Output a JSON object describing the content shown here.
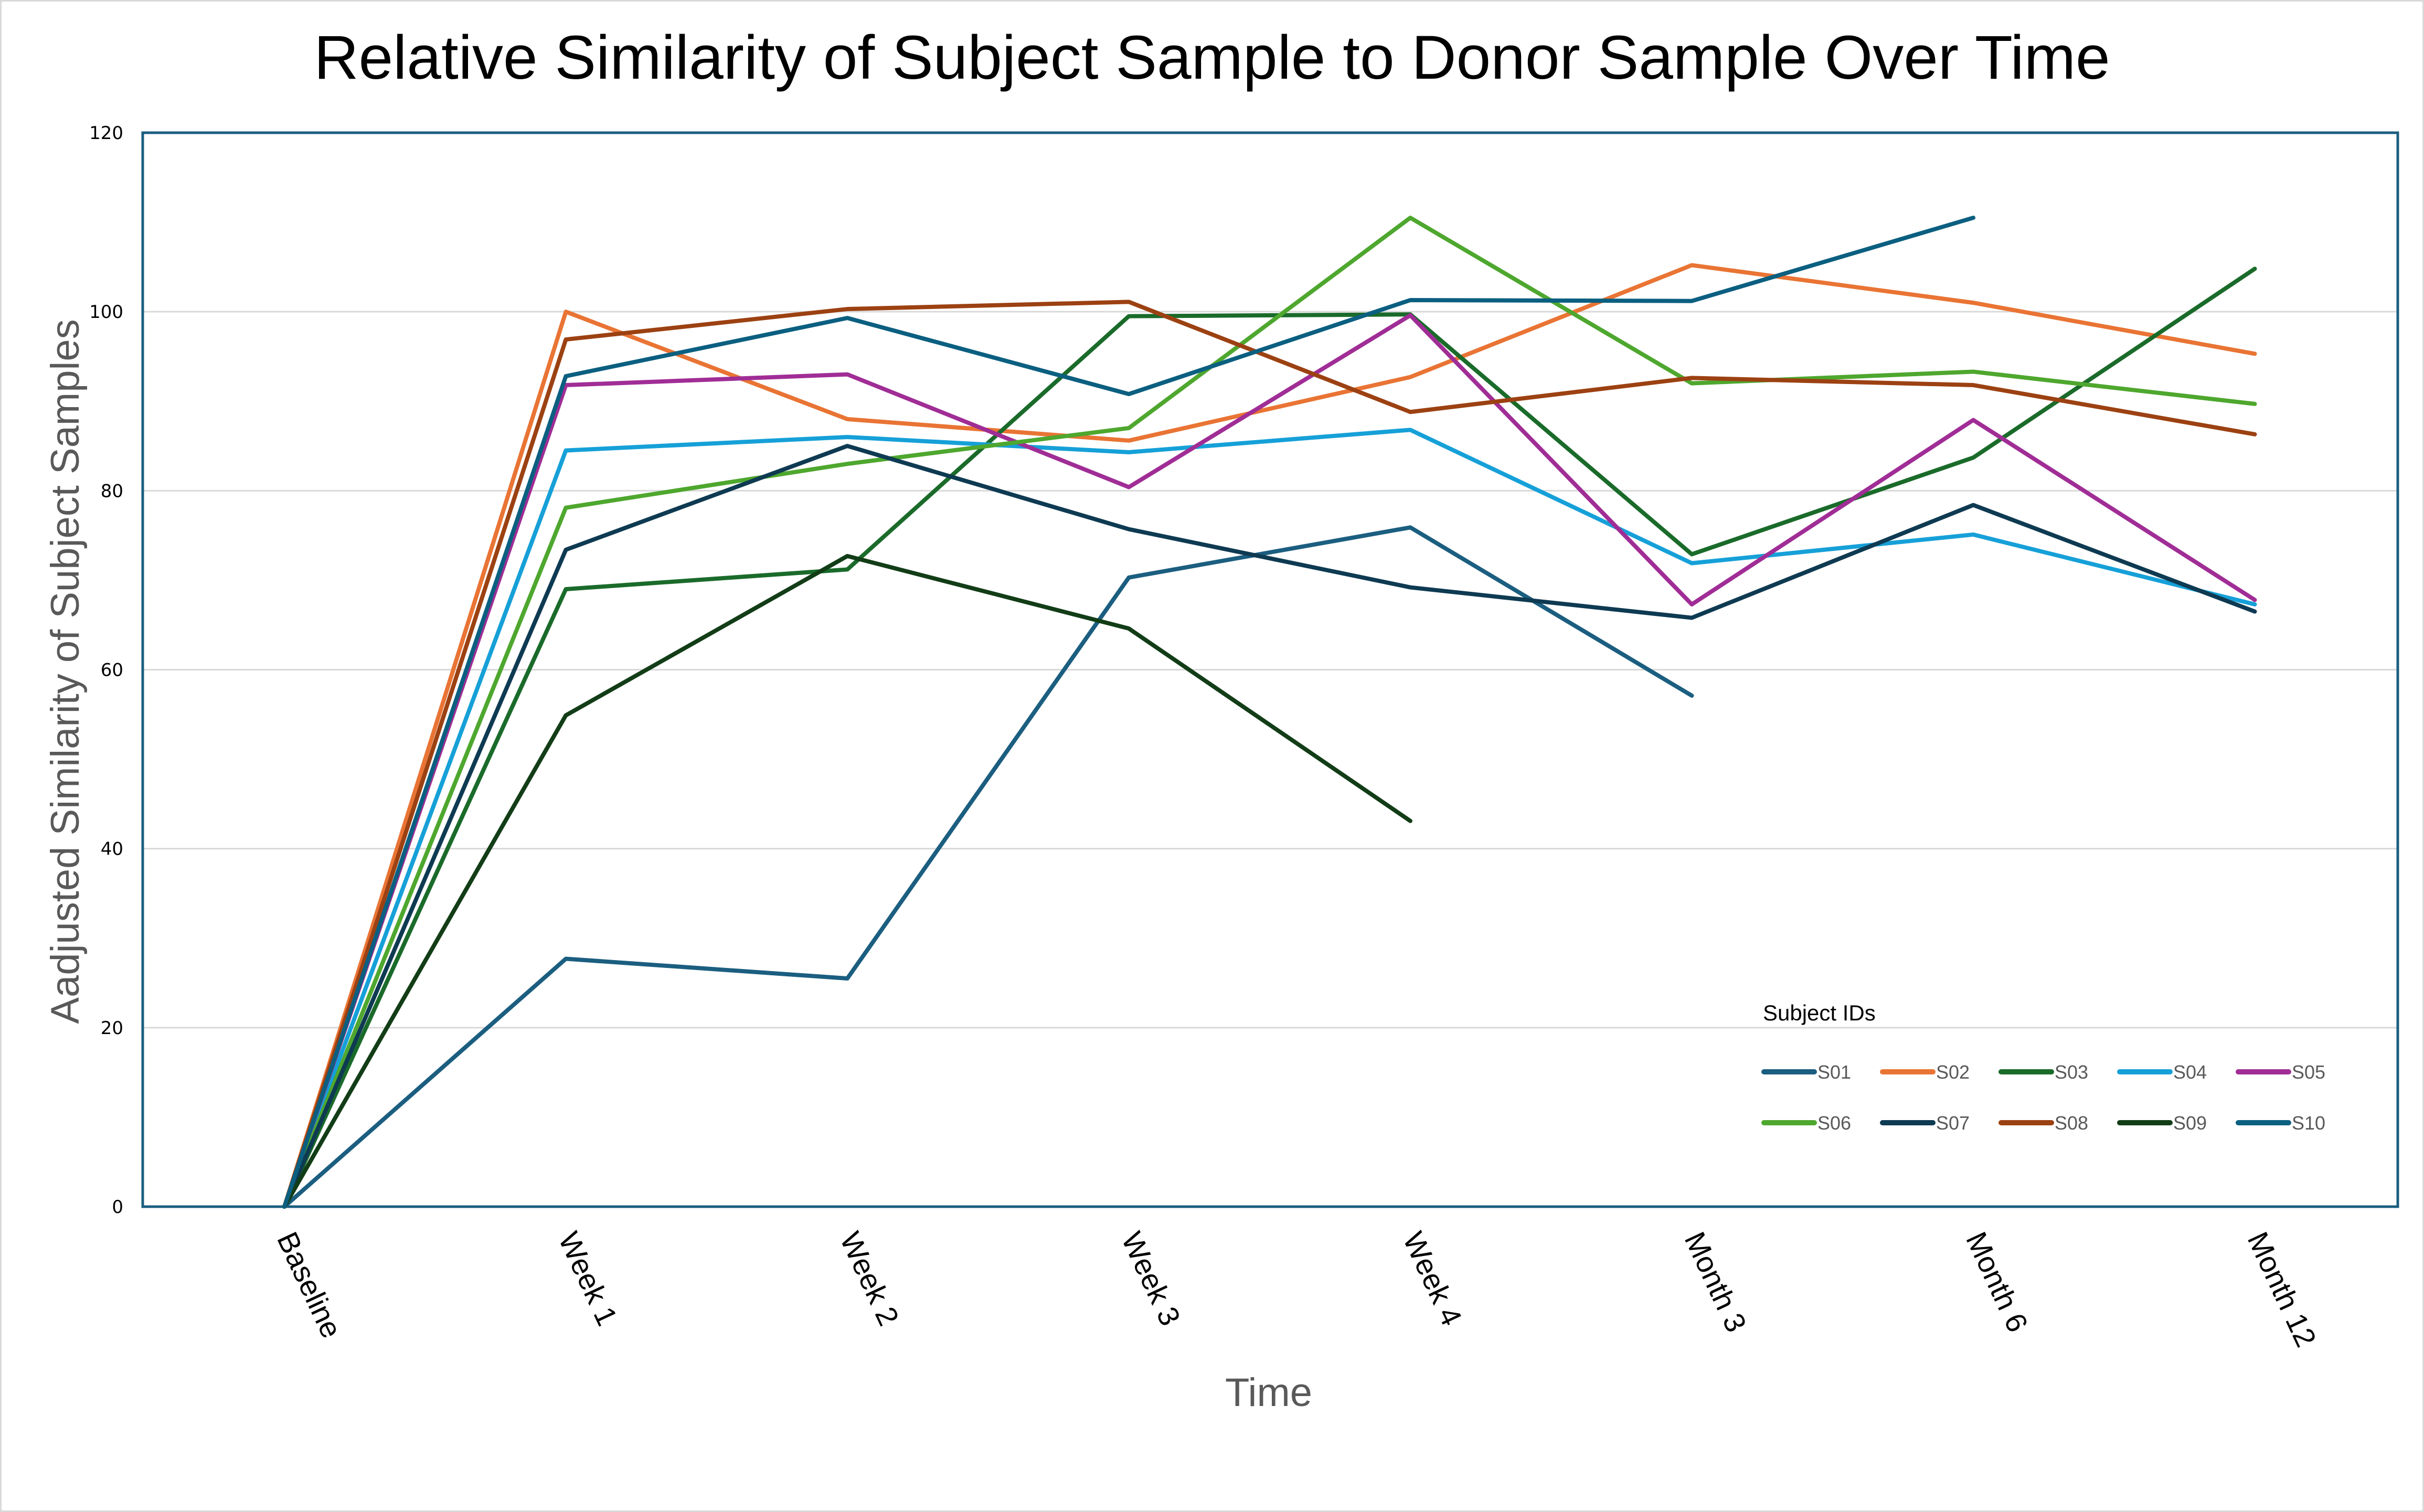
{
  "chart_data": {
    "type": "line",
    "title": "Relative Similarity of Subject Sample to Donor Sample Over Time",
    "xlabel": "Time",
    "ylabel": "Aadjusted Similarity of Subject Samples",
    "categories": [
      "Baseline",
      "Week 1",
      "Week 2",
      "Week 3",
      "Week 4",
      "Month 3",
      "Month 6",
      "Month 12"
    ],
    "ylim": [
      0,
      120
    ],
    "yticks": [
      0,
      20,
      40,
      60,
      80,
      100,
      120
    ],
    "grid": true,
    "legend": {
      "title": "Subject IDs",
      "placement": "bottom-right",
      "columns": 5
    },
    "series": [
      {
        "name": "S01",
        "color": "#1b5e80",
        "values": [
          0,
          27.7,
          25.5,
          70.3,
          75.9,
          57.1,
          null,
          null
        ]
      },
      {
        "name": "S02",
        "color": "#e97434",
        "values": [
          0,
          100.0,
          88.0,
          85.6,
          92.7,
          105.2,
          101.0,
          95.3
        ]
      },
      {
        "name": "S03",
        "color": "#1a6b2a",
        "values": [
          0,
          69.0,
          71.2,
          99.5,
          99.7,
          72.9,
          83.7,
          104.8
        ]
      },
      {
        "name": "S04",
        "color": "#16a0d8",
        "values": [
          0,
          84.5,
          86.0,
          84.3,
          86.8,
          71.9,
          75.1,
          67.3
        ]
      },
      {
        "name": "S05",
        "color": "#a02d96",
        "values": [
          0,
          91.8,
          93.0,
          80.4,
          99.6,
          67.3,
          87.9,
          67.8
        ]
      },
      {
        "name": "S06",
        "color": "#4ea72e",
        "values": [
          0,
          78.1,
          83.0,
          87.0,
          110.5,
          92.0,
          93.3,
          89.7
        ]
      },
      {
        "name": "S07",
        "color": "#0e3a52",
        "values": [
          0,
          73.4,
          85.0,
          75.7,
          69.2,
          65.8,
          78.4,
          66.5
        ]
      },
      {
        "name": "S08",
        "color": "#9c4112",
        "values": [
          0,
          96.9,
          100.3,
          101.1,
          88.8,
          92.6,
          91.8,
          86.3
        ]
      },
      {
        "name": "S09",
        "color": "#123d17",
        "values": [
          0,
          54.9,
          72.7,
          64.6,
          43.1,
          null,
          null,
          null
        ]
      },
      {
        "name": "S10",
        "color": "#0b5f80",
        "values": [
          0,
          92.8,
          99.3,
          90.8,
          101.3,
          101.2,
          110.5,
          null
        ]
      }
    ]
  }
}
